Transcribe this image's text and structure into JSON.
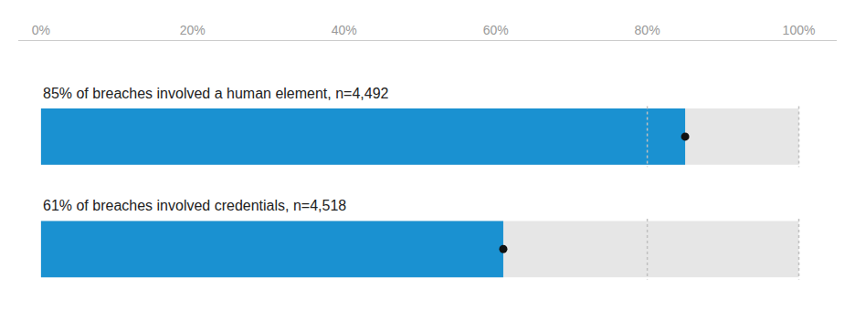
{
  "chart_data": {
    "type": "bar",
    "orientation": "horizontal",
    "categories": [
      "85% of breaches involved a human element, n=4,492",
      "61% of breaches involved credentials, n=4,518"
    ],
    "values": [
      85,
      61
    ],
    "color": "#1a91d1",
    "track": 100,
    "track_color": "#e6e6e6",
    "marker": "circle",
    "dot_color": "#111111",
    "reference_lines": [
      80,
      100
    ],
    "reference_line_color": "#c0c0c0",
    "xlim": [
      -3,
      105
    ],
    "xticks": [
      {
        "value": 0,
        "label": "0%"
      },
      {
        "value": 20,
        "label": "20%"
      },
      {
        "value": 40,
        "label": "40%"
      },
      {
        "value": 60,
        "label": "60%"
      },
      {
        "value": 80,
        "label": "80%"
      },
      {
        "value": 100,
        "label": "100%"
      }
    ],
    "grid": false,
    "tick_labels": "x"
  }
}
